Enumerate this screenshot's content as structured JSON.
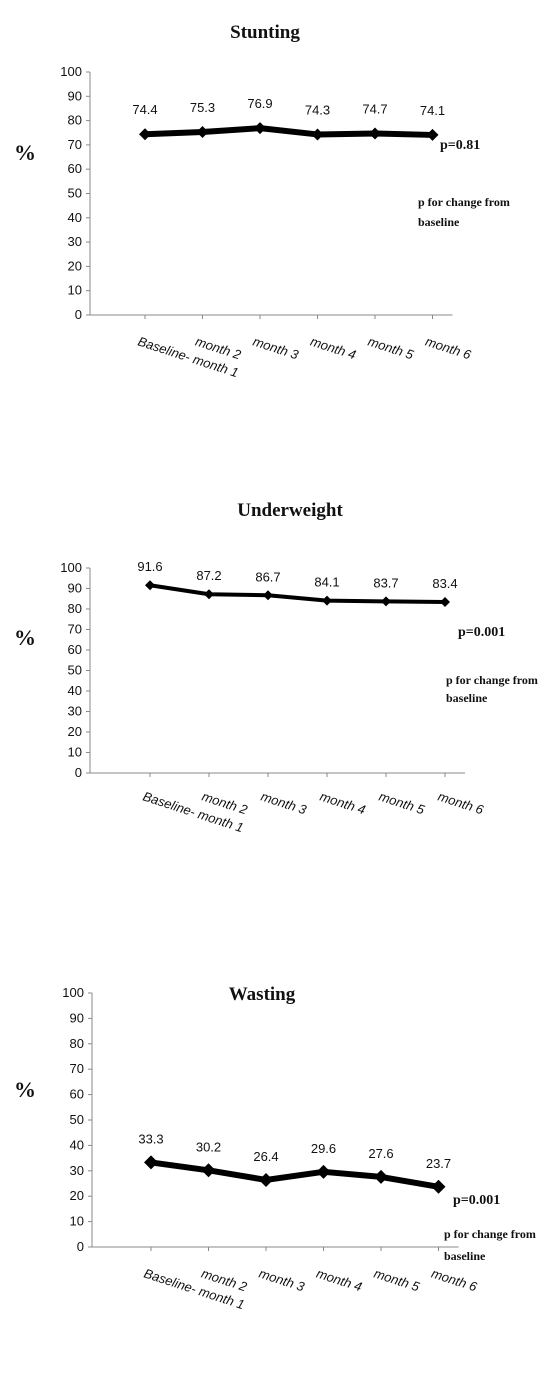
{
  "chart_data": [
    {
      "type": "line",
      "title": "Stunting",
      "ylabel": "%",
      "categories": [
        "Baseline- month 1",
        "month 2",
        "month 3",
        "month 4",
        "month 5",
        "month 6"
      ],
      "values": [
        74.4,
        75.3,
        76.9,
        74.3,
        74.7,
        74.1
      ],
      "data_labels": [
        "74.4",
        "75.3",
        "76.9",
        "74.3",
        "74.7",
        "74.1"
      ],
      "ylim": [
        0,
        100
      ],
      "yticks": [
        "0",
        "10",
        "20",
        "30",
        "40",
        "50",
        "60",
        "70",
        "80",
        "90",
        "100"
      ],
      "p_value": "p=0.81",
      "p_note": [
        "p for change from",
        "baseline"
      ],
      "grid": false,
      "marker": "diamond",
      "color": "#000000"
    },
    {
      "type": "line",
      "title": "Underweight",
      "ylabel": "%",
      "categories": [
        "Baseline- month 1",
        "month 2",
        "month 3",
        "month 4",
        "month 5",
        "month 6"
      ],
      "values": [
        91.6,
        87.2,
        86.7,
        84.1,
        83.7,
        83.4
      ],
      "data_labels": [
        "91.6",
        "87.2",
        "86.7",
        "84.1",
        "83.7",
        "83.4"
      ],
      "ylim": [
        0,
        100
      ],
      "yticks": [
        "0",
        "10",
        "20",
        "30",
        "40",
        "50",
        "60",
        "70",
        "80",
        "90",
        "100"
      ],
      "p_value": "p=0.001",
      "p_note": [
        "p for change from",
        "baseline"
      ],
      "grid": false,
      "marker": "diamond",
      "color": "#000000"
    },
    {
      "type": "line",
      "title": "Wasting",
      "ylabel": "%",
      "categories": [
        "Baseline- month 1",
        "month 2",
        "month 3",
        "month 4",
        "month 5",
        "month 6"
      ],
      "values": [
        33.3,
        30.2,
        26.4,
        29.6,
        27.6,
        23.7
      ],
      "data_labels": [
        "33.3",
        "30.2",
        "26.4",
        "29.6",
        "27.6",
        "23.7"
      ],
      "ylim": [
        0,
        100
      ],
      "yticks": [
        "0",
        "10",
        "20",
        "30",
        "40",
        "50",
        "60",
        "70",
        "80",
        "90",
        "100"
      ],
      "p_value": "p=0.001",
      "p_note": [
        "p for change from",
        "baseline"
      ],
      "grid": false,
      "marker": "diamond",
      "color": "#000000"
    }
  ]
}
